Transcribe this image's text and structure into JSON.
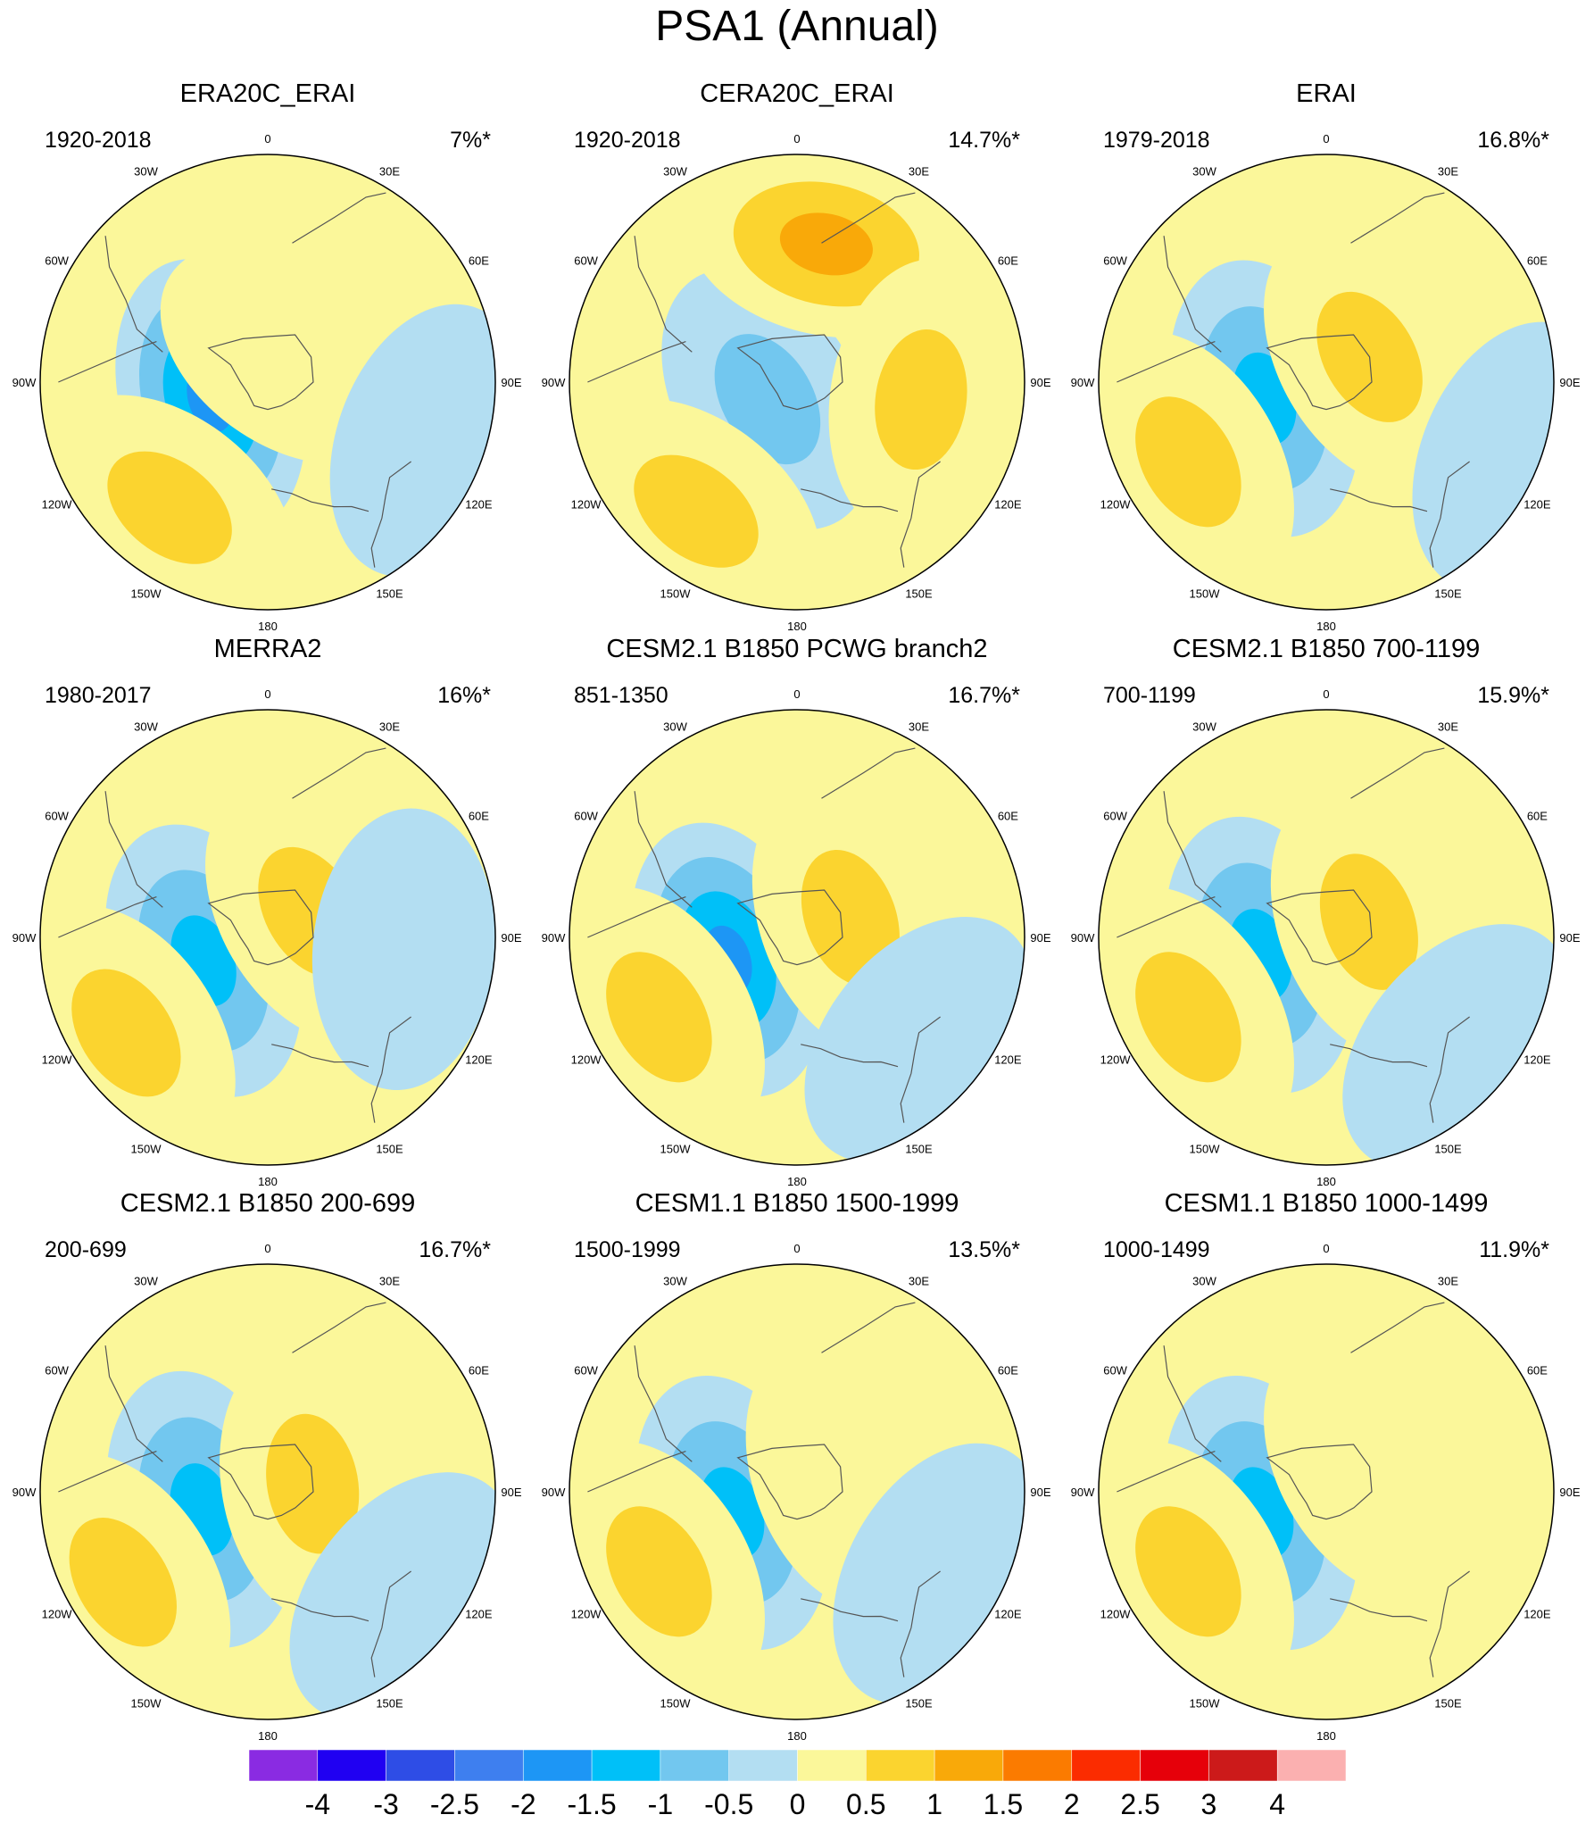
{
  "title": "PSA1 (Annual)",
  "longitude_labels": [
    "0",
    "30E",
    "60E",
    "90E",
    "120E",
    "150E",
    "180",
    "150W",
    "120W",
    "90W",
    "60W",
    "30W"
  ],
  "chart_data": {
    "type": "contour-map",
    "projection": "south-polar-stereographic",
    "levels": [
      -4,
      -3,
      -2.5,
      -2,
      -1.5,
      -1,
      -0.5,
      0,
      0.5,
      1,
      1.5,
      2,
      2.5,
      3,
      4
    ],
    "colors": [
      "#8a2be2",
      "#2000f2",
      "#2e4de6",
      "#3e7fef",
      "#1d96f5",
      "#00c0f8",
      "#72c7ef",
      "#b3def2",
      "#fbf79a",
      "#fbd42f",
      "#f9a909",
      "#fb7b00",
      "#fb2c00",
      "#e6000a",
      "#cc1a1a",
      "#fbb0b0"
    ],
    "panels": [
      {
        "title": "ERA20C_ERAI",
        "period": "1920-2018",
        "percent": "7%*",
        "features": [
          {
            "lon": 255,
            "r": 0.26,
            "value": -1.8,
            "kind": "minimum"
          },
          {
            "lon": 218,
            "r": 0.7,
            "value": 1.2,
            "kind": "maximum"
          },
          {
            "lon": 35,
            "r": 0.15,
            "value": 0.6,
            "kind": "maximum"
          },
          {
            "lon": 110,
            "r": 0.75,
            "value": -0.4,
            "kind": "minimum"
          }
        ]
      },
      {
        "title": "CERA20C_ERAI",
        "period": "1920-2018",
        "percent": "14.7%*",
        "features": [
          {
            "lon": 240,
            "r": 0.15,
            "value": -0.9,
            "kind": "minimum"
          },
          {
            "lon": 12,
            "r": 0.62,
            "value": 1.6,
            "kind": "maximum"
          },
          {
            "lon": 98,
            "r": 0.55,
            "value": 1.1,
            "kind": "maximum"
          },
          {
            "lon": 218,
            "r": 0.72,
            "value": 1.0,
            "kind": "maximum"
          }
        ]
      },
      {
        "title": "ERAI",
        "period": "1979-2018",
        "percent": "16.8%*",
        "features": [
          {
            "lon": 255,
            "r": 0.28,
            "value": -1.6,
            "kind": "minimum"
          },
          {
            "lon": 240,
            "r": 0.7,
            "value": 1.1,
            "kind": "maximum"
          },
          {
            "lon": 60,
            "r": 0.22,
            "value": 0.8,
            "kind": "maximum"
          },
          {
            "lon": 112,
            "r": 0.88,
            "value": -0.6,
            "kind": "minimum"
          }
        ]
      },
      {
        "title": "MERRA2",
        "period": "1980-2017",
        "percent": "16%*",
        "features": [
          {
            "lon": 250,
            "r": 0.3,
            "value": -1.4,
            "kind": "minimum"
          },
          {
            "lon": 236,
            "r": 0.75,
            "value": 1.0,
            "kind": "maximum"
          },
          {
            "lon": 60,
            "r": 0.22,
            "value": 1.0,
            "kind": "maximum"
          },
          {
            "lon": 95,
            "r": 0.6,
            "value": -0.6,
            "kind": "minimum"
          }
        ]
      },
      {
        "title": "CESM2.1 B1850 PCWG branch2",
        "period": "851-1350",
        "percent": "16.7%*",
        "features": [
          {
            "lon": 252,
            "r": 0.32,
            "value": -1.8,
            "kind": "minimum"
          },
          {
            "lon": 240,
            "r": 0.7,
            "value": 1.1,
            "kind": "maximum"
          },
          {
            "lon": 70,
            "r": 0.25,
            "value": 0.8,
            "kind": "maximum"
          },
          {
            "lon": 130,
            "r": 0.7,
            "value": -0.6,
            "kind": "minimum"
          }
        ]
      },
      {
        "title": "CESM2.1 B1850 700-1199",
        "period": "700-1199",
        "percent": "15.9%*",
        "features": [
          {
            "lon": 255,
            "r": 0.3,
            "value": -1.7,
            "kind": "minimum"
          },
          {
            "lon": 240,
            "r": 0.7,
            "value": 0.9,
            "kind": "maximum"
          },
          {
            "lon": 70,
            "r": 0.2,
            "value": 1.1,
            "kind": "maximum"
          },
          {
            "lon": 130,
            "r": 0.75,
            "value": -0.6,
            "kind": "minimum"
          }
        ]
      },
      {
        "title": "CESM2.1 B1850 200-699",
        "period": "200-699",
        "percent": "16.7%*",
        "features": [
          {
            "lon": 255,
            "r": 0.3,
            "value": -1.7,
            "kind": "minimum"
          },
          {
            "lon": 238,
            "r": 0.75,
            "value": 1.1,
            "kind": "maximum"
          },
          {
            "lon": 80,
            "r": 0.2,
            "value": 0.9,
            "kind": "maximum"
          },
          {
            "lon": 128,
            "r": 0.75,
            "value": -0.6,
            "kind": "minimum"
          }
        ]
      },
      {
        "title": "CESM1.1 B1850 1500-1999",
        "period": "1500-1999",
        "percent": "13.5%*",
        "features": [
          {
            "lon": 252,
            "r": 0.3,
            "value": -1.7,
            "kind": "minimum"
          },
          {
            "lon": 240,
            "r": 0.7,
            "value": 0.8,
            "kind": "maximum"
          },
          {
            "lon": 70,
            "r": 0.22,
            "value": 0.7,
            "kind": "maximum"
          },
          {
            "lon": 120,
            "r": 0.72,
            "value": -0.6,
            "kind": "minimum"
          }
        ]
      },
      {
        "title": "CESM1.1 B1850 1000-1499",
        "period": "1000-1499",
        "percent": "11.9%*",
        "features": [
          {
            "lon": 252,
            "r": 0.3,
            "value": -1.5,
            "kind": "minimum"
          },
          {
            "lon": 240,
            "r": 0.7,
            "value": 0.8,
            "kind": "maximum"
          },
          {
            "lon": 60,
            "r": 0.22,
            "value": 0.7,
            "kind": "maximum"
          }
        ]
      }
    ],
    "colorbar_labels": [
      "-4",
      "-3",
      "-2.5",
      "-2",
      "-1.5",
      "-1",
      "-0.5",
      "0",
      "0.5",
      "1",
      "1.5",
      "2",
      "2.5",
      "3",
      "4"
    ]
  }
}
